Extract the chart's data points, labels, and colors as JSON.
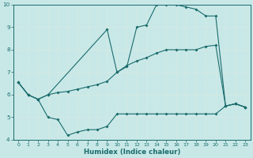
{
  "xlabel": "Humidex (Indice chaleur)",
  "background_color": "#c8e8e8",
  "grid_color": "#b8d8d8",
  "line_color": "#1a6b6b",
  "xlim": [
    -0.5,
    23.5
  ],
  "ylim": [
    4,
    10
  ],
  "xticks": [
    0,
    1,
    2,
    3,
    4,
    5,
    6,
    7,
    8,
    9,
    10,
    11,
    12,
    13,
    14,
    15,
    16,
    17,
    18,
    19,
    20,
    21,
    22,
    23
  ],
  "yticks": [
    4,
    5,
    6,
    7,
    8,
    9,
    10
  ],
  "line1_x": [
    0,
    1,
    2,
    3,
    4,
    5,
    6,
    7,
    8,
    9,
    10,
    11,
    12,
    13,
    14,
    15,
    16,
    17,
    18,
    19,
    20,
    21,
    22,
    23
  ],
  "line1_y": [
    6.55,
    6.0,
    5.8,
    5.0,
    4.9,
    4.2,
    4.35,
    4.45,
    4.45,
    4.6,
    5.15,
    5.15,
    5.15,
    5.15,
    5.15,
    5.15,
    5.15,
    5.15,
    5.15,
    5.15,
    5.15,
    5.5,
    5.6,
    5.45
  ],
  "line2_x": [
    0,
    1,
    2,
    3,
    4,
    5,
    6,
    7,
    8,
    9,
    10,
    11,
    12,
    13,
    14,
    15,
    16,
    17,
    18,
    19,
    20,
    21,
    22,
    23
  ],
  "line2_y": [
    6.55,
    6.0,
    5.8,
    6.0,
    6.1,
    6.15,
    6.25,
    6.35,
    6.45,
    6.6,
    7.0,
    7.3,
    7.5,
    7.65,
    7.85,
    8.0,
    8.0,
    8.0,
    8.0,
    8.15,
    8.2,
    5.5,
    5.6,
    5.45
  ],
  "line3_x": [
    0,
    1,
    2,
    3,
    9,
    10,
    11,
    12,
    13,
    14,
    15,
    16,
    17,
    18,
    19,
    20,
    21,
    22,
    23
  ],
  "line3_y": [
    6.55,
    6.0,
    5.8,
    6.0,
    8.9,
    7.0,
    7.25,
    9.0,
    9.1,
    10.0,
    10.0,
    10.0,
    9.9,
    9.8,
    9.5,
    9.5,
    5.5,
    5.6,
    5.45
  ]
}
